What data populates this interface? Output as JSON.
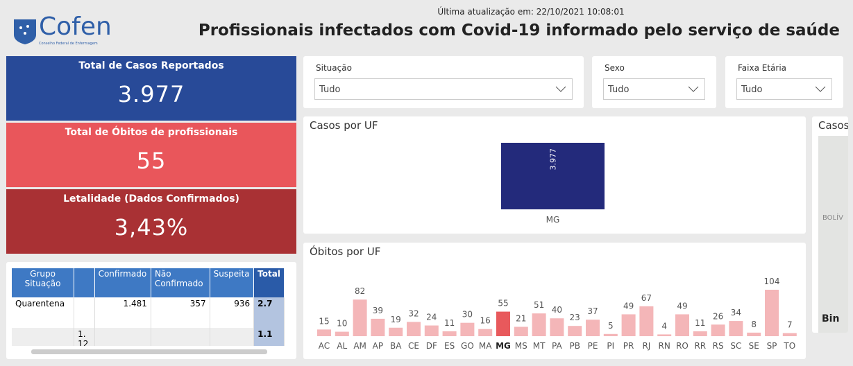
{
  "header": {
    "logo": "Cofen",
    "logo_subtitle": "Conselho Federal de Enfermagem",
    "updated": "Última atualização em: 22/10/2021 10:08:01",
    "title": "Profissionais infectados com Covid-19 informado pelo serviço de saúde"
  },
  "kpis": [
    {
      "label": "Total de Casos Reportados",
      "value": "3.977",
      "color": "#284a98"
    },
    {
      "label": "Total de Óbitos de profissionais",
      "value": "55",
      "color": "#e9565b"
    },
    {
      "label": "Letalidade (Dados Confirmados)",
      "value": "3,43%",
      "color": "#a93134"
    }
  ],
  "filters": [
    {
      "label": "Situação",
      "value": "Tudo"
    },
    {
      "label": "Sexo",
      "value": "Tudo"
    },
    {
      "label": "Faixa Etária",
      "value": "Tudo"
    }
  ],
  "table": {
    "headers": [
      "Grupo Situação",
      null,
      "Confirmado",
      "Não Confirmado",
      "Suspeita",
      "Total"
    ],
    "rows": [
      [
        "Quarentena",
        null,
        "1.481",
        "357",
        "936",
        "2.7"
      ],
      [
        null,
        "1. 12",
        null,
        null,
        null,
        "1.1"
      ]
    ]
  },
  "map": {
    "title": "Casos",
    "labels": [
      "BOLÍV",
      "Bin"
    ]
  },
  "chart_data": [
    {
      "type": "bar",
      "title": "Casos por UF",
      "categories": [
        "MG"
      ],
      "values": [
        3977
      ],
      "value_labels": [
        "3.977"
      ],
      "color": "#232a7b"
    },
    {
      "type": "bar",
      "title": "Óbitos por UF",
      "categories": [
        "AC",
        "AL",
        "AM",
        "AP",
        "BA",
        "CE",
        "DF",
        "ES",
        "GO",
        "MA",
        "MG",
        "MS",
        "MT",
        "PA",
        "PB",
        "PE",
        "PI",
        "PR",
        "RJ",
        "RN",
        "RO",
        "RR",
        "RS",
        "SC",
        "SE",
        "SP",
        "TO"
      ],
      "values": [
        15,
        10,
        82,
        39,
        19,
        32,
        24,
        11,
        30,
        16,
        55,
        21,
        51,
        40,
        23,
        37,
        5,
        49,
        67,
        4,
        49,
        11,
        26,
        34,
        8,
        104,
        7
      ],
      "color": "#f4b6b8",
      "highlight_color": "#e8595c",
      "highlight_index": 10
    }
  ]
}
